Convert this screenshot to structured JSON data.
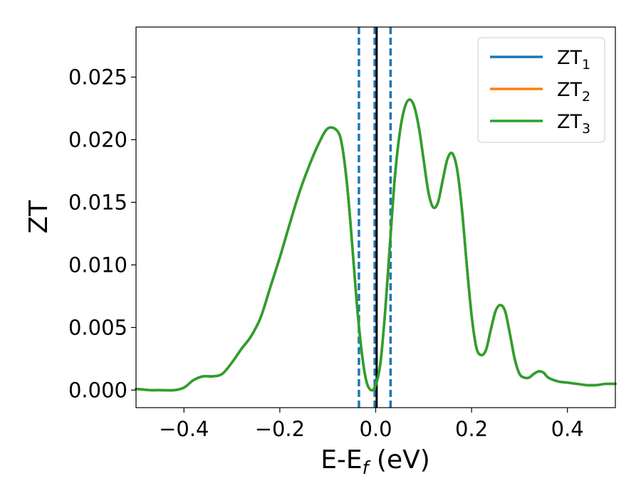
{
  "chart_data": {
    "type": "line",
    "title": "",
    "xlabel_main": "E-E",
    "xlabel_sub": "f",
    "xlabel_unit": " (eV)",
    "ylabel": "ZT",
    "xlim": [
      -0.5,
      0.5
    ],
    "ylim": [
      -0.0014,
      0.029
    ],
    "grid": false,
    "legend_position": "top-right",
    "xticks": [
      {
        "value": -0.4,
        "label": "−0.4"
      },
      {
        "value": -0.2,
        "label": "−0.2"
      },
      {
        "value": 0.0,
        "label": "0.0"
      },
      {
        "value": 0.2,
        "label": "0.2"
      },
      {
        "value": 0.4,
        "label": "0.4"
      }
    ],
    "yticks": [
      {
        "value": 0.0,
        "label": "0.000"
      },
      {
        "value": 0.005,
        "label": "0.005"
      },
      {
        "value": 0.01,
        "label": "0.010"
      },
      {
        "value": 0.015,
        "label": "0.015"
      },
      {
        "value": 0.02,
        "label": "0.020"
      },
      {
        "value": 0.025,
        "label": "0.025"
      }
    ],
    "x": [
      -0.5,
      -0.47,
      -0.45,
      -0.42,
      -0.4,
      -0.38,
      -0.36,
      -0.34,
      -0.32,
      -0.3,
      -0.28,
      -0.26,
      -0.24,
      -0.22,
      -0.2,
      -0.18,
      -0.16,
      -0.14,
      -0.12,
      -0.1,
      -0.08,
      -0.07,
      -0.06,
      -0.05,
      -0.04,
      -0.03,
      -0.02,
      -0.01,
      0.0,
      0.01,
      0.02,
      0.03,
      0.04,
      0.05,
      0.06,
      0.07,
      0.08,
      0.09,
      0.1,
      0.11,
      0.12,
      0.13,
      0.14,
      0.15,
      0.16,
      0.17,
      0.18,
      0.19,
      0.2,
      0.21,
      0.22,
      0.23,
      0.24,
      0.25,
      0.26,
      0.27,
      0.28,
      0.29,
      0.3,
      0.31,
      0.32,
      0.33,
      0.34,
      0.35,
      0.36,
      0.38,
      0.4,
      0.42,
      0.44,
      0.46,
      0.48,
      0.5
    ],
    "series": [
      {
        "name_main": "ZT",
        "name_sub": "1",
        "color": "#1f77b4",
        "values": [
          0.0001,
          0.0,
          0.0,
          0.0,
          0.0002,
          0.0008,
          0.0011,
          0.0011,
          0.0013,
          0.0022,
          0.0033,
          0.0043,
          0.0058,
          0.0082,
          0.0106,
          0.0132,
          0.0157,
          0.0178,
          0.0196,
          0.0209,
          0.0207,
          0.0195,
          0.0165,
          0.0121,
          0.0072,
          0.0033,
          0.0008,
          0.0,
          0.0004,
          0.0022,
          0.0064,
          0.0118,
          0.017,
          0.0205,
          0.0225,
          0.0232,
          0.0227,
          0.021,
          0.0184,
          0.0158,
          0.0146,
          0.015,
          0.0168,
          0.0185,
          0.0189,
          0.0176,
          0.0144,
          0.01,
          0.006,
          0.0034,
          0.0028,
          0.0032,
          0.0048,
          0.0063,
          0.0068,
          0.0063,
          0.0045,
          0.0025,
          0.0013,
          0.001,
          0.001,
          0.0013,
          0.0015,
          0.0014,
          0.001,
          0.0007,
          0.0006,
          0.0005,
          0.0004,
          0.0004,
          0.0005,
          0.0005
        ]
      },
      {
        "name_main": "ZT",
        "name_sub": "2",
        "color": "#ff7f0e",
        "values": [
          0.0001,
          0.0,
          0.0,
          0.0,
          0.0002,
          0.0008,
          0.0011,
          0.0011,
          0.0013,
          0.0022,
          0.0033,
          0.0043,
          0.0058,
          0.0082,
          0.0106,
          0.0132,
          0.0157,
          0.0178,
          0.0196,
          0.0209,
          0.0207,
          0.0195,
          0.0165,
          0.0121,
          0.0072,
          0.0033,
          0.0008,
          0.0,
          0.0004,
          0.0022,
          0.0064,
          0.0118,
          0.017,
          0.0205,
          0.0225,
          0.0232,
          0.0227,
          0.021,
          0.0184,
          0.0158,
          0.0146,
          0.015,
          0.0168,
          0.0185,
          0.0189,
          0.0176,
          0.0144,
          0.01,
          0.006,
          0.0034,
          0.0028,
          0.0032,
          0.0048,
          0.0063,
          0.0068,
          0.0063,
          0.0045,
          0.0025,
          0.0013,
          0.001,
          0.001,
          0.0013,
          0.0015,
          0.0014,
          0.001,
          0.0007,
          0.0006,
          0.0005,
          0.0004,
          0.0004,
          0.0005,
          0.0005
        ]
      },
      {
        "name_main": "ZT",
        "name_sub": "3",
        "color": "#2ca02c",
        "values": [
          0.0001,
          0.0,
          0.0,
          0.0,
          0.0002,
          0.0008,
          0.0011,
          0.0011,
          0.0013,
          0.0022,
          0.0033,
          0.0043,
          0.0058,
          0.0082,
          0.0106,
          0.0132,
          0.0157,
          0.0178,
          0.0196,
          0.0209,
          0.0207,
          0.0195,
          0.0165,
          0.0121,
          0.0072,
          0.0033,
          0.0008,
          0.0,
          0.0004,
          0.0022,
          0.0064,
          0.0118,
          0.017,
          0.0205,
          0.0225,
          0.0232,
          0.0227,
          0.021,
          0.0184,
          0.0158,
          0.0146,
          0.015,
          0.0168,
          0.0185,
          0.0189,
          0.0176,
          0.0144,
          0.01,
          0.006,
          0.0034,
          0.0028,
          0.0032,
          0.0048,
          0.0063,
          0.0068,
          0.0063,
          0.0045,
          0.0025,
          0.0013,
          0.001,
          0.001,
          0.0013,
          0.0015,
          0.0014,
          0.001,
          0.0007,
          0.0006,
          0.0005,
          0.0004,
          0.0004,
          0.0005,
          0.0005
        ]
      }
    ],
    "vlines": [
      {
        "x": -0.035,
        "color": "#1f77b4",
        "style": "dashed"
      },
      {
        "x": 0.031,
        "color": "#1f77b4",
        "style": "dashed"
      },
      {
        "x": -0.002,
        "color": "#1f77b4",
        "style": "dashed"
      },
      {
        "x": 0.002,
        "color": "#000000",
        "style": "solid"
      }
    ]
  }
}
